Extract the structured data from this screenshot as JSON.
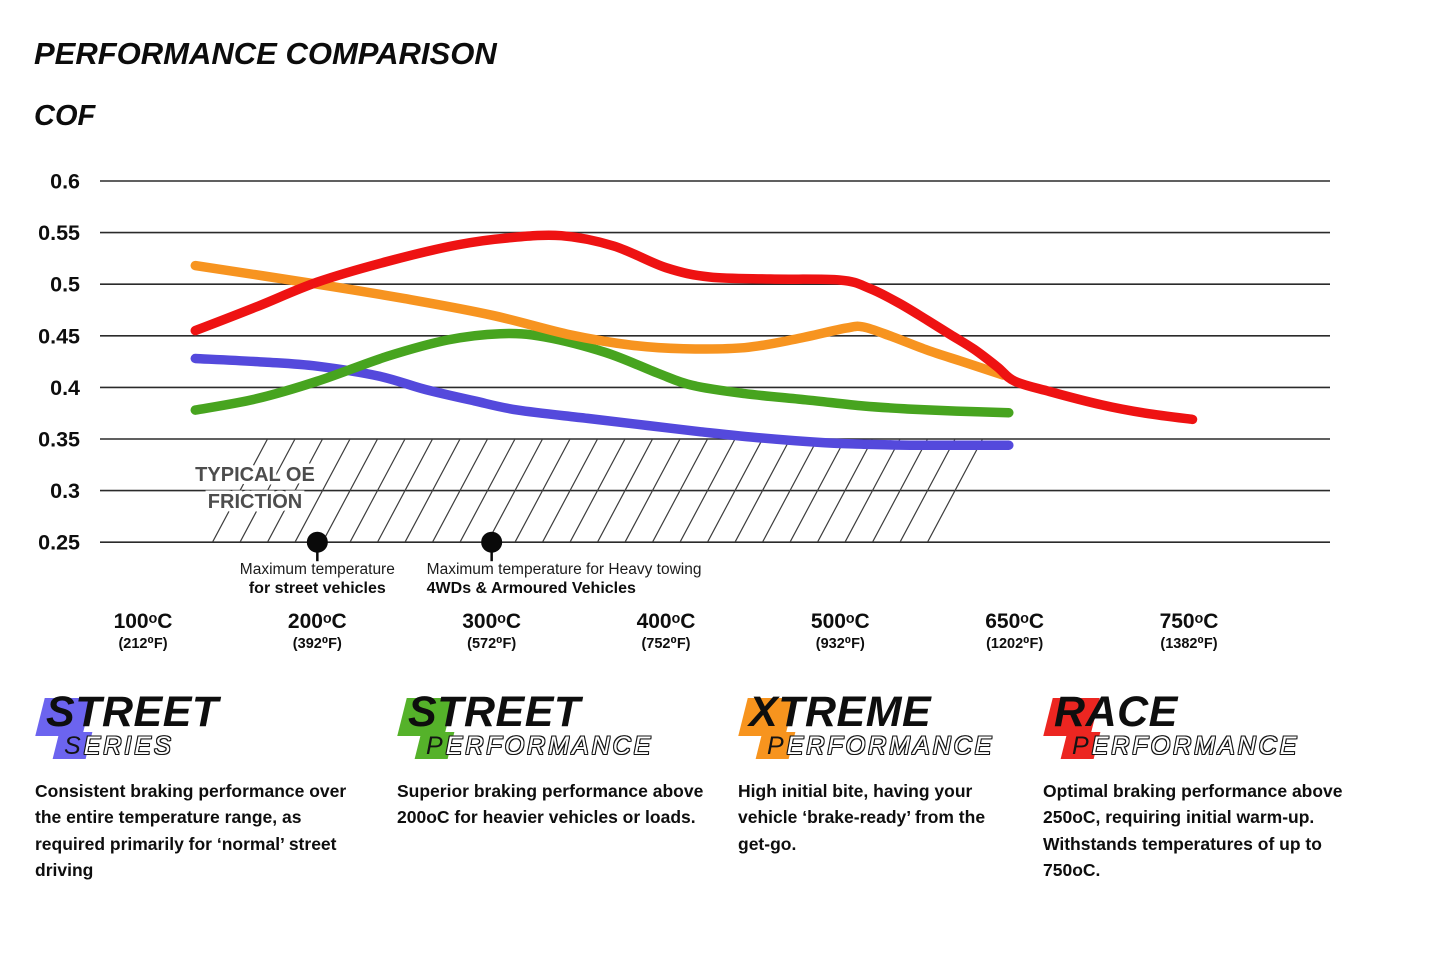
{
  "title": "PERFORMANCE COMPARISON",
  "chart_data": {
    "type": "line",
    "title": "PERFORMANCE COMPARISON",
    "ylabel": "COF",
    "ylim": [
      0.25,
      0.6
    ],
    "grid": true,
    "legend_position": "bottom",
    "y_ticks": [
      0.6,
      0.55,
      0.5,
      0.45,
      0.4,
      0.35,
      0.3,
      0.25
    ],
    "x_axis": {
      "tick_temps_c": [
        100,
        200,
        300,
        400,
        500,
        650,
        750
      ],
      "tick_labels_c": [
        "100ᵒC",
        "200ᵒC",
        "300ᵒC",
        "400ᵒC",
        "500ᵒC",
        "650ᵒC",
        "750ᵒC"
      ],
      "tick_labels_f": [
        "(212⁰F)",
        "(392⁰F)",
        "(572⁰F)",
        "(752⁰F)",
        "(932⁰F)",
        "(1202⁰F)",
        "(1382⁰F)"
      ]
    },
    "series": [
      {
        "name": "Street Series",
        "color": "#5449dc",
        "points": [
          [
            130,
            0.428
          ],
          [
            170,
            0.4245
          ],
          [
            200,
            0.4205
          ],
          [
            235,
            0.411
          ],
          [
            262,
            0.398
          ],
          [
            290,
            0.387
          ],
          [
            315,
            0.378
          ],
          [
            355,
            0.37
          ],
          [
            390,
            0.363
          ],
          [
            420,
            0.357
          ],
          [
            455,
            0.351
          ],
          [
            490,
            0.3465
          ],
          [
            520,
            0.345
          ],
          [
            560,
            0.344
          ],
          [
            600,
            0.344
          ],
          [
            645,
            0.344
          ]
        ]
      },
      {
        "name": "Street Performance",
        "color": "#47a41f",
        "points": [
          [
            130,
            0.378
          ],
          [
            165,
            0.389
          ],
          [
            200,
            0.406
          ],
          [
            240,
            0.43
          ],
          [
            275,
            0.446
          ],
          [
            305,
            0.452
          ],
          [
            330,
            0.449
          ],
          [
            365,
            0.434
          ],
          [
            395,
            0.414
          ],
          [
            415,
            0.402
          ],
          [
            445,
            0.394
          ],
          [
            480,
            0.388
          ],
          [
            520,
            0.382
          ],
          [
            560,
            0.379
          ],
          [
            600,
            0.377
          ],
          [
            645,
            0.3755
          ]
        ]
      },
      {
        "name": "Xtreme Performance",
        "color": "#f79420",
        "points": [
          [
            130,
            0.518
          ],
          [
            200,
            0.5
          ],
          [
            250,
            0.486
          ],
          [
            300,
            0.47
          ],
          [
            345,
            0.451
          ],
          [
            380,
            0.441
          ],
          [
            410,
            0.4375
          ],
          [
            445,
            0.4385
          ],
          [
            475,
            0.447
          ],
          [
            505,
            0.4575
          ],
          [
            520,
            0.4585
          ],
          [
            545,
            0.449
          ],
          [
            575,
            0.436
          ],
          [
            605,
            0.425
          ],
          [
            640,
            0.412
          ]
        ]
      },
      {
        "name": "Race Performance",
        "color": "#ee1212",
        "points": [
          [
            130,
            0.455
          ],
          [
            165,
            0.478
          ],
          [
            200,
            0.502
          ],
          [
            240,
            0.522
          ],
          [
            280,
            0.538
          ],
          [
            310,
            0.545
          ],
          [
            340,
            0.547
          ],
          [
            370,
            0.537
          ],
          [
            400,
            0.516
          ],
          [
            425,
            0.507
          ],
          [
            460,
            0.505
          ],
          [
            500,
            0.504
          ],
          [
            525,
            0.496
          ],
          [
            550,
            0.482
          ],
          [
            575,
            0.465
          ],
          [
            595,
            0.451
          ],
          [
            615,
            0.437
          ],
          [
            635,
            0.42
          ],
          [
            650,
            0.406
          ],
          [
            670,
            0.396
          ],
          [
            700,
            0.383
          ],
          [
            725,
            0.375
          ],
          [
            752,
            0.369
          ]
        ]
      }
    ],
    "oe_band": {
      "label_lines": [
        "TYPICAL OE",
        "FRICTION"
      ],
      "cof_range": [
        0.25,
        0.35
      ]
    },
    "annotations": [
      {
        "temp_c": 200,
        "align": "center",
        "lines": [
          "Maximum temperature",
          "for street vehicles"
        ]
      },
      {
        "temp_c": 300,
        "align": "left",
        "lines": [
          "Maximum temperature for Heavy towing",
          "4WDs & Armoured Vehicles"
        ]
      }
    ]
  },
  "legend": [
    {
      "initial_top": "S",
      "rest_top": "TREET",
      "initial_bottom": "S",
      "rest_bottom": "ERIES",
      "color": "#6c64ef",
      "description": "Consistent braking performance over the entire temperature range, as required primarily for ‘normal’ street driving"
    },
    {
      "initial_top": "S",
      "rest_top": "TREET",
      "initial_bottom": "P",
      "rest_bottom": "ERFORMANCE",
      "color": "#55b22a",
      "description": "Superior braking performance above 200oC for heavier vehicles or loads."
    },
    {
      "initial_top": "X",
      "rest_top": "TREME",
      "initial_bottom": "P",
      "rest_bottom": "ERFORMANCE",
      "color": "#f7941e",
      "description": "High initial bite, having your vehicle ‘brake-ready’ from the get-go."
    },
    {
      "initial_top": "R",
      "rest_top": "ACE",
      "initial_bottom": "P",
      "rest_bottom": "ERFORMANCE",
      "color": "#ec2621",
      "description": "Optimal braking performance above 250oC, requiring initial warm-up. Withstands temperatures of up to 750oC."
    }
  ]
}
